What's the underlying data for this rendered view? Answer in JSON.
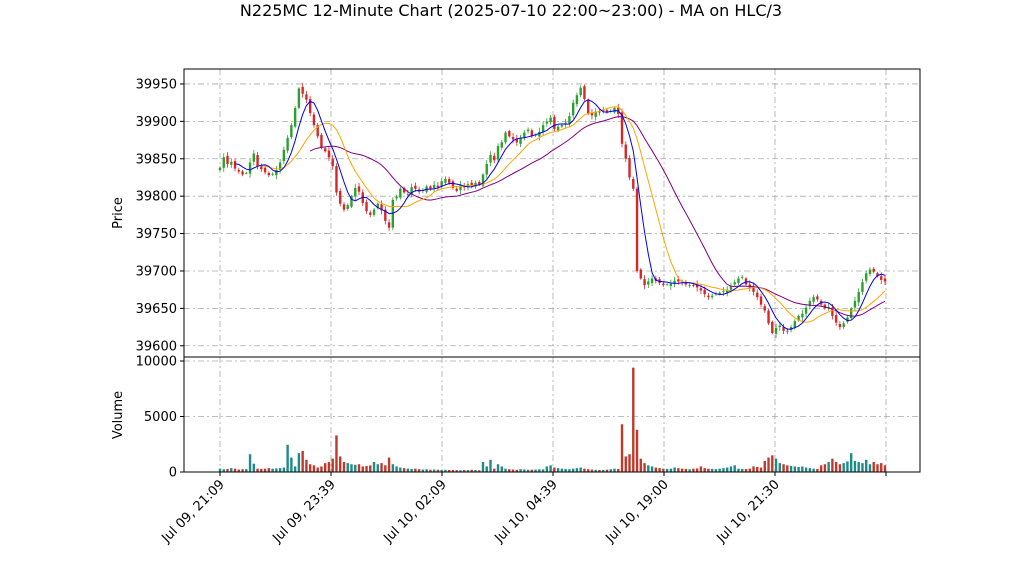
{
  "chart_data": {
    "type": "candlestick",
    "title": "N225MC 12-Minute Chart (2025-07-10 22:00~23:00) - MA on HLC/3",
    "price_panel": {
      "ylabel": "Price",
      "ylim": [
        39585,
        39970
      ],
      "yticks": [
        39600,
        39650,
        39700,
        39750,
        39800,
        39850,
        39900,
        39950
      ],
      "grid": true
    },
    "volume_panel": {
      "ylabel": "Volume",
      "ylim": [
        0,
        10000
      ],
      "yticks": [
        0,
        5000,
        10000
      ],
      "grid": true
    },
    "xtick_labels": [
      "Jul 09, 21:09",
      "Jul 09, 23:39",
      "Jul 10, 02:09",
      "Jul 10, 04:39",
      "Jul 10, 19:00",
      "Jul 10, 21:30"
    ],
    "colors": {
      "up": "#2ca02c",
      "down": "#d62728",
      "vol_up": "#1f8a8a",
      "vol_down": "#c0392b",
      "ma_short": "#0000ee",
      "ma_mid": "#ffa500",
      "ma_long": "#800080"
    },
    "closes": [
      39838,
      39852,
      39843,
      39846,
      39837,
      39833,
      39829,
      39831,
      39845,
      39857,
      39840,
      39836,
      39832,
      39828,
      39830,
      39835,
      39845,
      39862,
      39878,
      39895,
      39918,
      39944,
      39937,
      39929,
      39911,
      39895,
      39880,
      39865,
      39860,
      39852,
      39840,
      39805,
      39790,
      39782,
      39788,
      39800,
      39811,
      39806,
      39791,
      39780,
      39775,
      39782,
      39790,
      39781,
      39767,
      39758,
      39795,
      39799,
      39810,
      39805,
      39803,
      39812,
      39810,
      39806,
      39808,
      39813,
      39809,
      39815,
      39812,
      39820,
      39823,
      39818,
      39811,
      39807,
      39815,
      39812,
      39816,
      39814,
      39818,
      39816,
      39829,
      39843,
      39855,
      39848,
      39867,
      39872,
      39885,
      39880,
      39876,
      39872,
      39878,
      39885,
      39889,
      39880,
      39882,
      39886,
      39895,
      39900,
      39905,
      39890,
      39893,
      39895,
      39898,
      39907,
      39925,
      39935,
      39945,
      39930,
      39910,
      39908,
      39913,
      39912,
      39916,
      39913,
      39914,
      39918,
      39910,
      39870,
      39850,
      39825,
      39810,
      39700,
      39690,
      39681,
      39686,
      39690,
      39687,
      39684,
      39681,
      39682,
      39683,
      39687,
      39686,
      39684,
      39682,
      39681,
      39680,
      39678,
      39674,
      39669,
      39665,
      39667,
      39670,
      39671,
      39673,
      39675,
      39680,
      39685,
      39690,
      39692,
      39682,
      39678,
      39672,
      39665,
      39655,
      39647,
      39630,
      39617,
      39624,
      39627,
      39620,
      39619,
      39625,
      39633,
      39640,
      39643,
      39651,
      39660,
      39665,
      39662,
      39655,
      39650,
      39652,
      39640,
      39631,
      39625,
      39630,
      39638,
      39650,
      39660,
      39672,
      39685,
      39697,
      39702,
      39699,
      39693,
      39688,
      39686
    ],
    "volumes": [
      300,
      250,
      280,
      350,
      300,
      220,
      250,
      260,
      1600,
      750,
      300,
      280,
      300,
      350,
      300,
      330,
      350,
      400,
      2450,
      1300,
      500,
      1700,
      1900,
      1100,
      700,
      600,
      400,
      500,
      800,
      900,
      1200,
      3300,
      1400,
      900,
      800,
      700,
      650,
      700,
      500,
      550,
      600,
      900,
      700,
      800,
      600,
      1300,
      700,
      500,
      400,
      350,
      300,
      280,
      300,
      250,
      220,
      250,
      200,
      220,
      200,
      180,
      200,
      180,
      190,
      170,
      160,
      170,
      180,
      200,
      180,
      160,
      900,
      500,
      1100,
      300,
      700,
      500,
      300,
      250,
      220,
      200,
      250,
      230,
      200,
      210,
      220,
      250,
      240,
      500,
      600,
      400,
      350,
      300,
      280,
      250,
      300,
      350,
      400,
      300,
      250,
      220,
      200,
      180,
      190,
      210,
      250,
      300,
      280,
      4300,
      1400,
      1600,
      9400,
      3800,
      1200,
      800,
      600,
      500,
      400,
      350,
      300,
      280,
      300,
      400,
      350,
      300,
      280,
      250,
      300,
      320,
      500,
      350,
      300,
      280,
      260,
      300,
      350,
      400,
      500,
      600,
      300,
      280,
      260,
      300,
      500,
      450,
      400,
      1000,
      1300,
      1500,
      1200,
      800,
      700,
      600,
      550,
      500,
      450,
      500,
      400,
      350,
      300,
      280,
      600,
      700,
      900,
      1200,
      900,
      700,
      800,
      950,
      1700,
      1000,
      900,
      800,
      1100,
      700,
      900,
      700,
      800,
      600,
      400,
      300
    ]
  }
}
